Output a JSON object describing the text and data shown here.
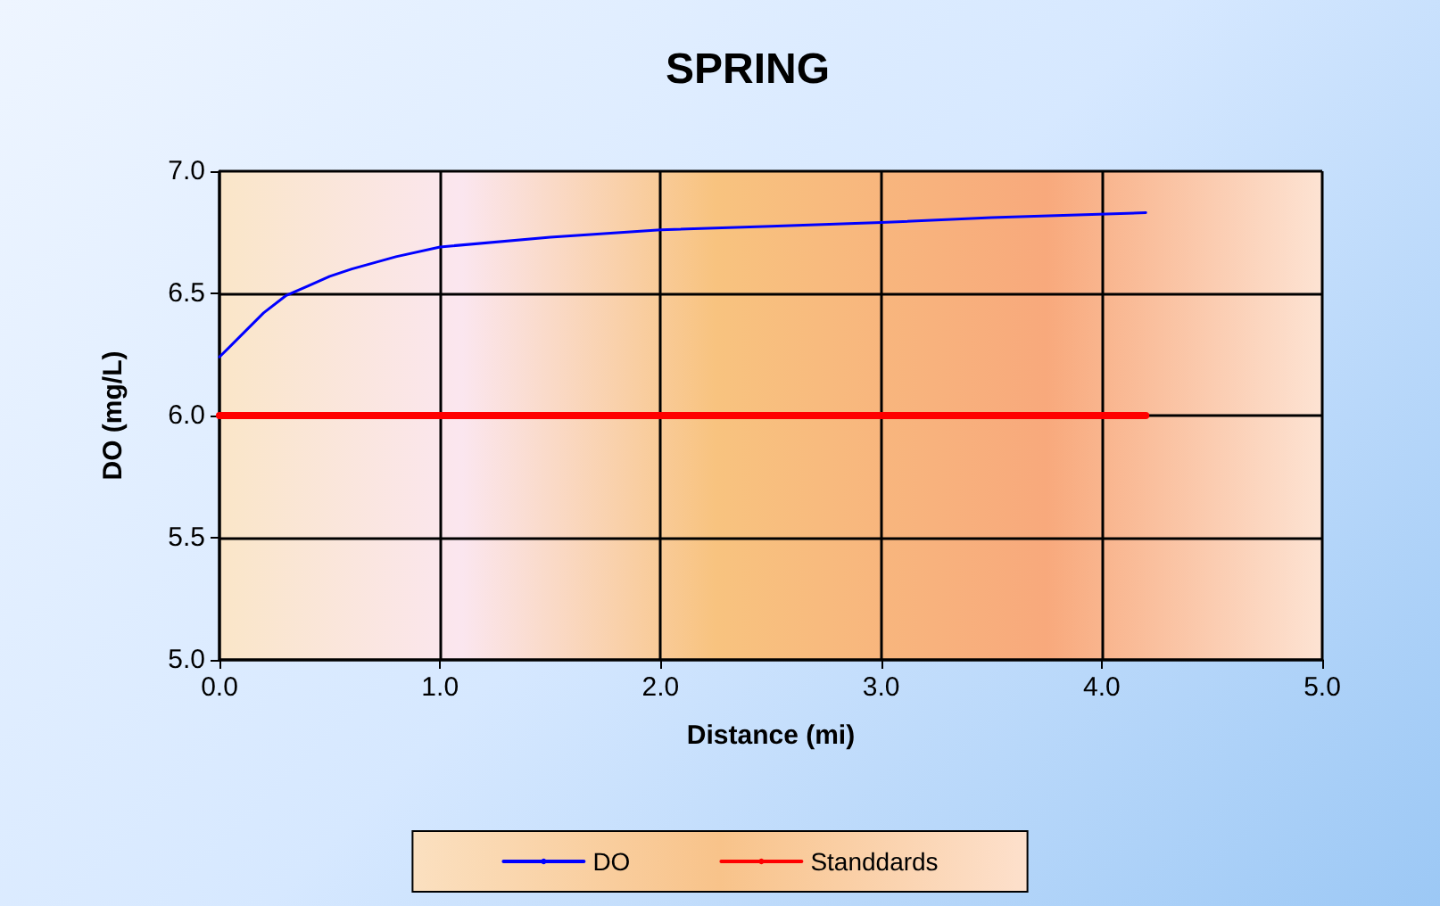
{
  "chart_data": {
    "type": "line",
    "title": "SPRING",
    "xlabel": "Distance (mi)",
    "ylabel": "DO (mg/L)",
    "xlim": [
      0,
      5
    ],
    "xticks": [
      {
        "value": 0,
        "label": "0.0"
      },
      {
        "value": 1,
        "label": "1.0"
      },
      {
        "value": 2,
        "label": "2.0"
      },
      {
        "value": 3,
        "label": "3.0"
      },
      {
        "value": 4,
        "label": "4.0"
      },
      {
        "value": 5,
        "label": "5.0"
      }
    ],
    "ylim": [
      5,
      7
    ],
    "yticks": [
      {
        "value": 5,
        "label": "5.0"
      },
      {
        "value": 5.5,
        "label": "5.5"
      },
      {
        "value": 6,
        "label": "6.0"
      },
      {
        "value": 6.5,
        "label": "6.5"
      },
      {
        "value": 7,
        "label": "7.0"
      }
    ],
    "series": [
      {
        "name": "DO",
        "color": "#0000ff",
        "x": [
          0,
          0.1,
          0.2,
          0.3,
          0.4,
          0.5,
          0.6,
          0.8,
          1.0,
          1.5,
          2.0,
          2.5,
          3.0,
          3.5,
          4.2
        ],
        "values": [
          6.24,
          6.33,
          6.42,
          6.49,
          6.53,
          6.57,
          6.6,
          6.65,
          6.69,
          6.73,
          6.76,
          6.775,
          6.79,
          6.81,
          6.83
        ]
      },
      {
        "name": "Standdards",
        "color": "#ff0000",
        "x": [
          0,
          4.2
        ],
        "values": [
          6.0,
          6.0
        ]
      }
    ],
    "grid": true,
    "legend": "bottom",
    "marker": "none",
    "line_style": "solid"
  }
}
